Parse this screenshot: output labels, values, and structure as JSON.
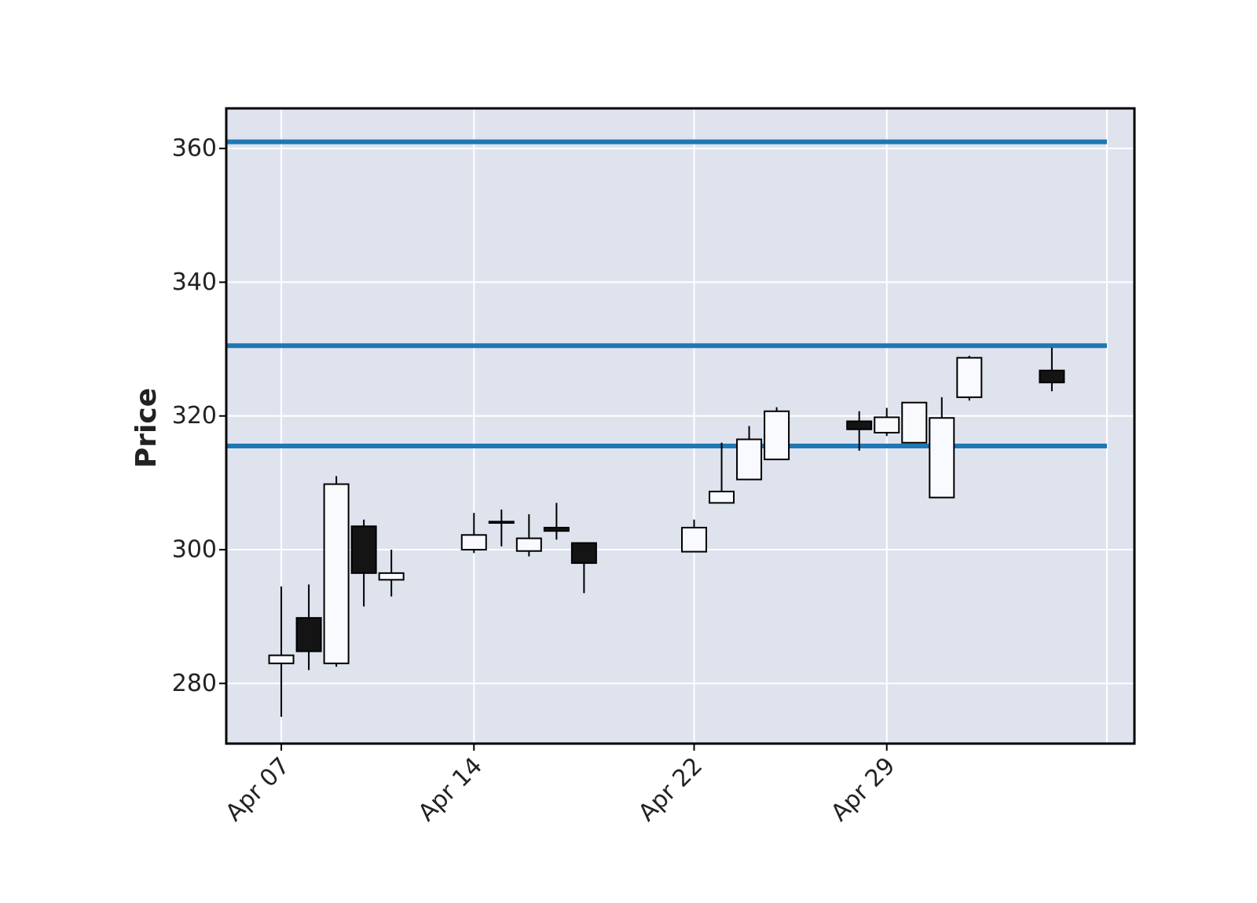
{
  "chart_data": {
    "type": "candlestick",
    "title": "",
    "xlabel": "",
    "ylabel": "Price",
    "ylim": [
      271,
      366
    ],
    "yticks": [
      280,
      300,
      320,
      340,
      360
    ],
    "xlim": [
      "2024-04-05",
      "2024-05-08"
    ],
    "xticks": [
      {
        "date": "2024-04-07",
        "label": "Apr 07"
      },
      {
        "date": "2024-04-14",
        "label": "Apr 14"
      },
      {
        "date": "2024-04-22",
        "label": "Apr 22"
      },
      {
        "date": "2024-04-29",
        "label": "Apr 29"
      }
    ],
    "grid": true,
    "background_color": "#dee3ee",
    "up_color": "#f8fafd",
    "down_color": "#141414",
    "hline_color": "#1f77b4",
    "hlines": [
      361,
      330.5,
      315.5
    ],
    "hline_range": [
      "2024-04-05",
      "2024-05-07"
    ],
    "candles": [
      {
        "date": "2024-04-07",
        "open": 283.0,
        "high": 294.5,
        "low": 275.0,
        "close": 284.2
      },
      {
        "date": "2024-04-08",
        "open": 289.8,
        "high": 294.8,
        "low": 282.0,
        "close": 284.8
      },
      {
        "date": "2024-04-09",
        "open": 283.0,
        "high": 311.0,
        "low": 282.5,
        "close": 309.8
      },
      {
        "date": "2024-04-10",
        "open": 303.5,
        "high": 304.5,
        "low": 291.5,
        "close": 296.5
      },
      {
        "date": "2024-04-11",
        "open": 295.5,
        "high": 300.0,
        "low": 293.0,
        "close": 296.5
      },
      {
        "date": "2024-04-14",
        "open": 300.0,
        "high": 305.5,
        "low": 299.5,
        "close": 302.2
      },
      {
        "date": "2024-04-15",
        "open": 304.0,
        "high": 306.0,
        "low": 300.5,
        "close": 304.2
      },
      {
        "date": "2024-04-16",
        "open": 299.8,
        "high": 305.3,
        "low": 299.0,
        "close": 301.7
      },
      {
        "date": "2024-04-17",
        "open": 303.3,
        "high": 307.0,
        "low": 301.5,
        "close": 302.8
      },
      {
        "date": "2024-04-18",
        "open": 301.0,
        "high": 301.0,
        "low": 293.5,
        "close": 298.0
      },
      {
        "date": "2024-04-22",
        "open": 299.7,
        "high": 304.5,
        "low": 299.7,
        "close": 303.3
      },
      {
        "date": "2024-04-23",
        "open": 307.0,
        "high": 316.0,
        "low": 307.0,
        "close": 308.7
      },
      {
        "date": "2024-04-24",
        "open": 310.5,
        "high": 318.5,
        "low": 310.5,
        "close": 316.5
      },
      {
        "date": "2024-04-25",
        "open": 313.5,
        "high": 321.3,
        "low": 313.5,
        "close": 320.7
      },
      {
        "date": "2024-04-28",
        "open": 319.2,
        "high": 320.7,
        "low": 314.8,
        "close": 318.0
      },
      {
        "date": "2024-04-29",
        "open": 317.5,
        "high": 321.2,
        "low": 317.0,
        "close": 319.8
      },
      {
        "date": "2024-04-30",
        "open": 316.0,
        "high": 322.0,
        "low": 316.0,
        "close": 322.0
      },
      {
        "date": "2024-05-01",
        "open": 307.8,
        "high": 322.8,
        "low": 307.8,
        "close": 319.7
      },
      {
        "date": "2024-05-02",
        "open": 322.8,
        "high": 329.0,
        "low": 322.3,
        "close": 328.7
      },
      {
        "date": "2024-05-05",
        "open": 326.8,
        "high": 330.2,
        "low": 323.7,
        "close": 325.0
      }
    ]
  }
}
